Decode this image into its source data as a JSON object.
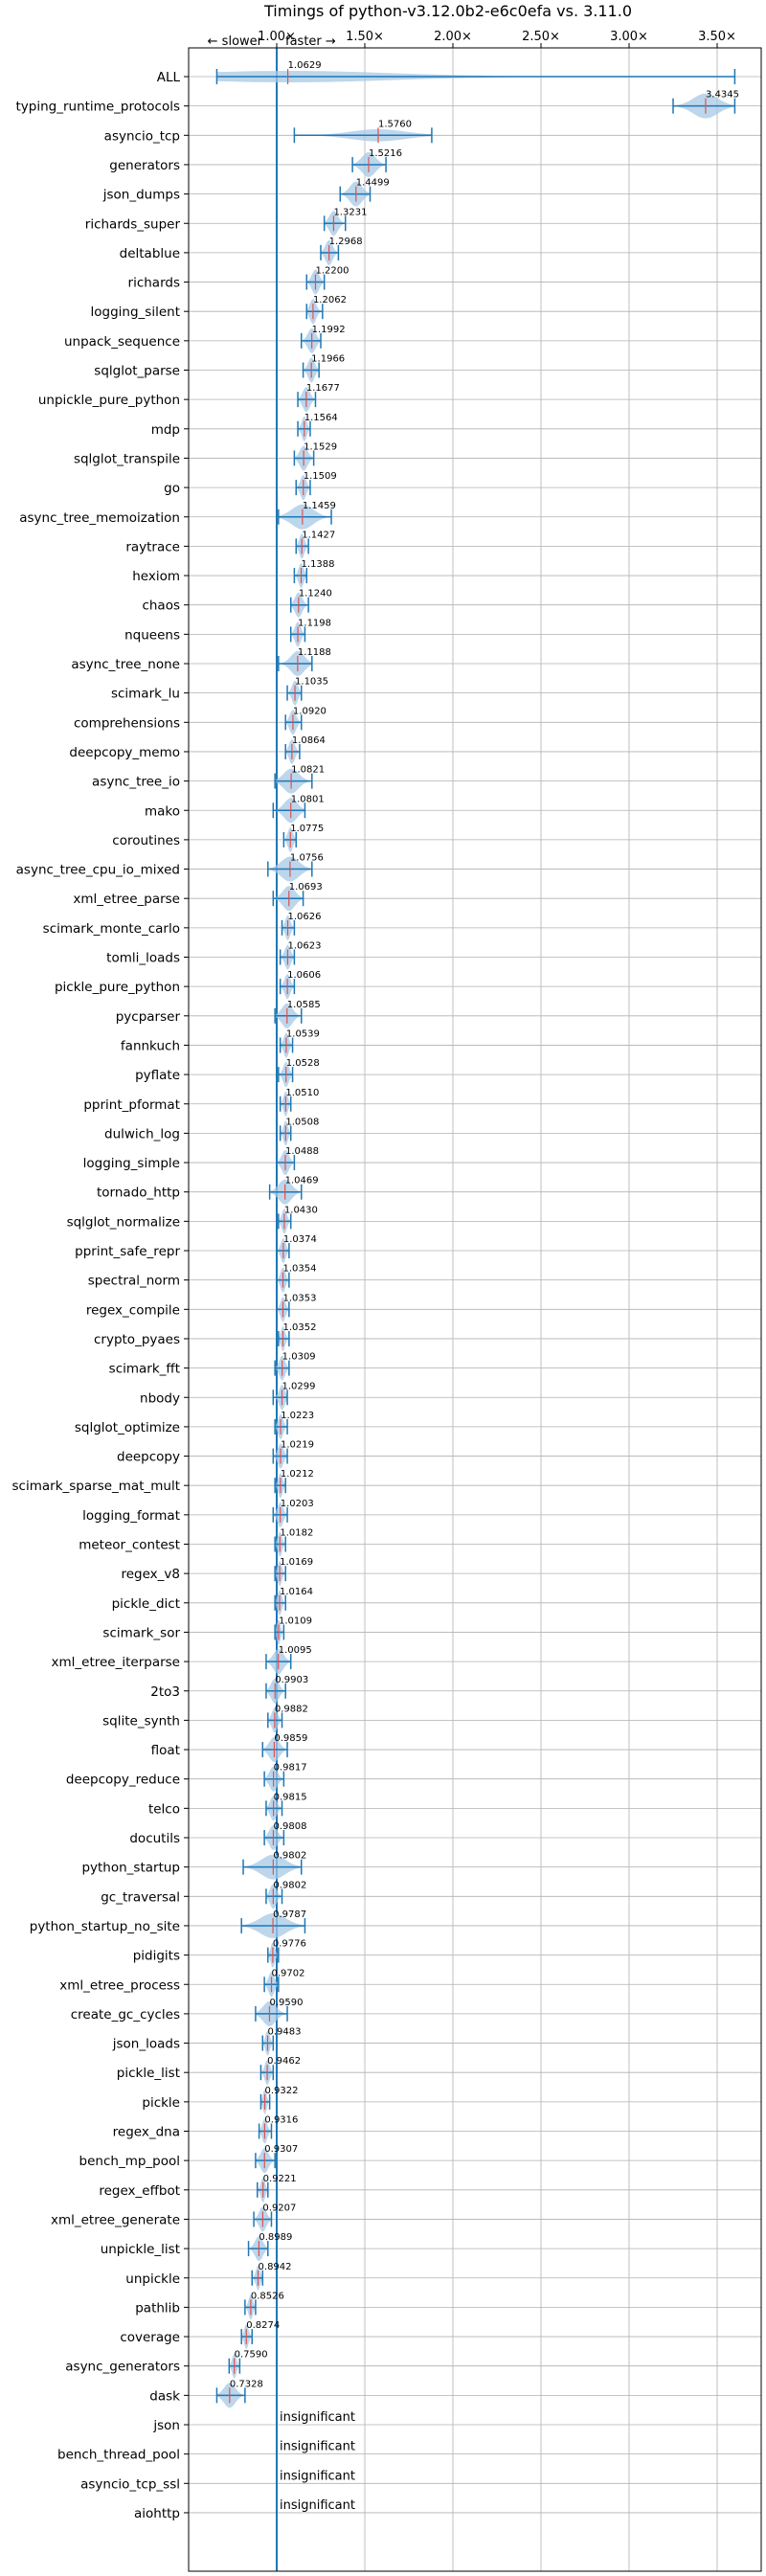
{
  "chart_data": {
    "type": "violin",
    "title": "Timings of python-v3.12.0b2-e6c0efa vs. 3.11.0",
    "direction_hint": {
      "slower": "← slower",
      "faster": "faster →"
    },
    "xlim": [
      0.5,
      3.75
    ],
    "x_ticks": [
      1.0,
      1.5,
      2.0,
      2.5,
      3.0,
      3.5
    ],
    "x_tick_labels": [
      "1.00×",
      "1.50×",
      "2.00×",
      "2.50×",
      "3.00×",
      "3.50×"
    ],
    "reference_line": 1.0,
    "grid": true,
    "colors": {
      "violin": "#a6c8e6",
      "line": "#1f77b4",
      "median": "#e05050",
      "grid": "#b0b0b0"
    },
    "insignificant_label": "insignificant",
    "benchmarks": [
      {
        "name": "ALL",
        "mean": 1.0629,
        "min": 0.66,
        "max": 3.6
      },
      {
        "name": "typing_runtime_protocols",
        "mean": 3.4345,
        "min": 3.25,
        "max": 3.6
      },
      {
        "name": "asyncio_tcp",
        "mean": 1.576,
        "min": 1.1,
        "max": 1.88
      },
      {
        "name": "generators",
        "mean": 1.5216,
        "min": 1.43,
        "max": 1.62
      },
      {
        "name": "json_dumps",
        "mean": 1.4499,
        "min": 1.36,
        "max": 1.53
      },
      {
        "name": "richards_super",
        "mean": 1.3231,
        "min": 1.27,
        "max": 1.39
      },
      {
        "name": "deltablue",
        "mean": 1.2968,
        "min": 1.25,
        "max": 1.35
      },
      {
        "name": "richards",
        "mean": 1.22,
        "min": 1.17,
        "max": 1.27
      },
      {
        "name": "logging_silent",
        "mean": 1.2062,
        "min": 1.17,
        "max": 1.26
      },
      {
        "name": "unpack_sequence",
        "mean": 1.1992,
        "min": 1.14,
        "max": 1.25
      },
      {
        "name": "sqlglot_parse",
        "mean": 1.1966,
        "min": 1.15,
        "max": 1.24
      },
      {
        "name": "unpickle_pure_python",
        "mean": 1.1677,
        "min": 1.12,
        "max": 1.22
      },
      {
        "name": "mdp",
        "mean": 1.1564,
        "min": 1.12,
        "max": 1.19
      },
      {
        "name": "sqlglot_transpile",
        "mean": 1.1529,
        "min": 1.1,
        "max": 1.21
      },
      {
        "name": "go",
        "mean": 1.1509,
        "min": 1.11,
        "max": 1.19
      },
      {
        "name": "async_tree_memoization",
        "mean": 1.1459,
        "min": 1.01,
        "max": 1.31
      },
      {
        "name": "raytrace",
        "mean": 1.1427,
        "min": 1.11,
        "max": 1.18
      },
      {
        "name": "hexiom",
        "mean": 1.1388,
        "min": 1.1,
        "max": 1.17
      },
      {
        "name": "chaos",
        "mean": 1.124,
        "min": 1.08,
        "max": 1.18
      },
      {
        "name": "nqueens",
        "mean": 1.1198,
        "min": 1.08,
        "max": 1.16
      },
      {
        "name": "async_tree_none",
        "mean": 1.1188,
        "min": 1.01,
        "max": 1.2
      },
      {
        "name": "scimark_lu",
        "mean": 1.1035,
        "min": 1.06,
        "max": 1.14
      },
      {
        "name": "comprehensions",
        "mean": 1.092,
        "min": 1.05,
        "max": 1.14
      },
      {
        "name": "deepcopy_memo",
        "mean": 1.0864,
        "min": 1.05,
        "max": 1.13
      },
      {
        "name": "async_tree_io",
        "mean": 1.0821,
        "min": 0.99,
        "max": 1.2
      },
      {
        "name": "mako",
        "mean": 1.0801,
        "min": 0.98,
        "max": 1.16
      },
      {
        "name": "coroutines",
        "mean": 1.0775,
        "min": 1.04,
        "max": 1.11
      },
      {
        "name": "async_tree_cpu_io_mixed",
        "mean": 1.0756,
        "min": 0.95,
        "max": 1.2
      },
      {
        "name": "xml_etree_parse",
        "mean": 1.0693,
        "min": 0.98,
        "max": 1.15
      },
      {
        "name": "scimark_monte_carlo",
        "mean": 1.0626,
        "min": 1.03,
        "max": 1.1
      },
      {
        "name": "tomli_loads",
        "mean": 1.0623,
        "min": 1.02,
        "max": 1.1
      },
      {
        "name": "pickle_pure_python",
        "mean": 1.0606,
        "min": 1.02,
        "max": 1.1
      },
      {
        "name": "pycparser",
        "mean": 1.0585,
        "min": 0.99,
        "max": 1.14
      },
      {
        "name": "fannkuch",
        "mean": 1.0539,
        "min": 1.02,
        "max": 1.09
      },
      {
        "name": "pyflate",
        "mean": 1.0528,
        "min": 1.01,
        "max": 1.09
      },
      {
        "name": "pprint_pformat",
        "mean": 1.051,
        "min": 1.02,
        "max": 1.08
      },
      {
        "name": "dulwich_log",
        "mean": 1.0508,
        "min": 1.02,
        "max": 1.08
      },
      {
        "name": "logging_simple",
        "mean": 1.0488,
        "min": 1.0,
        "max": 1.1
      },
      {
        "name": "tornado_http",
        "mean": 1.0469,
        "min": 0.96,
        "max": 1.14
      },
      {
        "name": "sqlglot_normalize",
        "mean": 1.043,
        "min": 1.01,
        "max": 1.08
      },
      {
        "name": "pprint_safe_repr",
        "mean": 1.0374,
        "min": 1.0,
        "max": 1.07
      },
      {
        "name": "spectral_norm",
        "mean": 1.0354,
        "min": 1.0,
        "max": 1.07
      },
      {
        "name": "regex_compile",
        "mean": 1.0353,
        "min": 1.0,
        "max": 1.07
      },
      {
        "name": "crypto_pyaes",
        "mean": 1.0352,
        "min": 1.01,
        "max": 1.07
      },
      {
        "name": "scimark_fft",
        "mean": 1.0309,
        "min": 0.99,
        "max": 1.07
      },
      {
        "name": "nbody",
        "mean": 1.0299,
        "min": 0.98,
        "max": 1.06
      },
      {
        "name": "sqlglot_optimize",
        "mean": 1.0223,
        "min": 0.99,
        "max": 1.06
      },
      {
        "name": "deepcopy",
        "mean": 1.0219,
        "min": 0.98,
        "max": 1.06
      },
      {
        "name": "scimark_sparse_mat_mult",
        "mean": 1.0212,
        "min": 0.99,
        "max": 1.05
      },
      {
        "name": "logging_format",
        "mean": 1.0203,
        "min": 0.98,
        "max": 1.06
      },
      {
        "name": "meteor_contest",
        "mean": 1.0182,
        "min": 0.99,
        "max": 1.05
      },
      {
        "name": "regex_v8",
        "mean": 1.0169,
        "min": 0.99,
        "max": 1.05
      },
      {
        "name": "pickle_dict",
        "mean": 1.0164,
        "min": 0.99,
        "max": 1.05
      },
      {
        "name": "scimark_sor",
        "mean": 1.0109,
        "min": 0.99,
        "max": 1.04
      },
      {
        "name": "xml_etree_iterparse",
        "mean": 1.0095,
        "min": 0.94,
        "max": 1.08
      },
      {
        "name": "2to3",
        "mean": 0.9903,
        "min": 0.94,
        "max": 1.05
      },
      {
        "name": "sqlite_synth",
        "mean": 0.9882,
        "min": 0.95,
        "max": 1.03
      },
      {
        "name": "float",
        "mean": 0.9859,
        "min": 0.92,
        "max": 1.06
      },
      {
        "name": "deepcopy_reduce",
        "mean": 0.9817,
        "min": 0.93,
        "max": 1.04
      },
      {
        "name": "telco",
        "mean": 0.9815,
        "min": 0.94,
        "max": 1.03
      },
      {
        "name": "docutils",
        "mean": 0.9808,
        "min": 0.93,
        "max": 1.04
      },
      {
        "name": "python_startup",
        "mean": 0.9802,
        "min": 0.81,
        "max": 1.14
      },
      {
        "name": "gc_traversal",
        "mean": 0.9802,
        "min": 0.94,
        "max": 1.03
      },
      {
        "name": "python_startup_no_site",
        "mean": 0.9787,
        "min": 0.8,
        "max": 1.16
      },
      {
        "name": "pidigits",
        "mean": 0.9776,
        "min": 0.95,
        "max": 1.01
      },
      {
        "name": "xml_etree_process",
        "mean": 0.9702,
        "min": 0.93,
        "max": 1.01
      },
      {
        "name": "create_gc_cycles",
        "mean": 0.959,
        "min": 0.88,
        "max": 1.06
      },
      {
        "name": "json_loads",
        "mean": 0.9483,
        "min": 0.92,
        "max": 0.98
      },
      {
        "name": "pickle_list",
        "mean": 0.9462,
        "min": 0.91,
        "max": 0.98
      },
      {
        "name": "pickle",
        "mean": 0.9322,
        "min": 0.91,
        "max": 0.96
      },
      {
        "name": "regex_dna",
        "mean": 0.9316,
        "min": 0.9,
        "max": 0.97
      },
      {
        "name": "bench_mp_pool",
        "mean": 0.9307,
        "min": 0.88,
        "max": 0.99
      },
      {
        "name": "regex_effbot",
        "mean": 0.9221,
        "min": 0.89,
        "max": 0.95
      },
      {
        "name": "xml_etree_generate",
        "mean": 0.9207,
        "min": 0.87,
        "max": 0.97
      },
      {
        "name": "unpickle_list",
        "mean": 0.8989,
        "min": 0.84,
        "max": 0.95
      },
      {
        "name": "unpickle",
        "mean": 0.8942,
        "min": 0.86,
        "max": 0.92
      },
      {
        "name": "pathlib",
        "mean": 0.8526,
        "min": 0.82,
        "max": 0.88
      },
      {
        "name": "coverage",
        "mean": 0.8274,
        "min": 0.8,
        "max": 0.86
      },
      {
        "name": "async_generators",
        "mean": 0.759,
        "min": 0.73,
        "max": 0.79
      },
      {
        "name": "dask",
        "mean": 0.7328,
        "min": 0.66,
        "max": 0.82
      },
      {
        "name": "json",
        "insignificant": true
      },
      {
        "name": "bench_thread_pool",
        "insignificant": true
      },
      {
        "name": "asyncio_tcp_ssl",
        "insignificant": true
      },
      {
        "name": "aiohttp",
        "insignificant": true
      }
    ]
  }
}
